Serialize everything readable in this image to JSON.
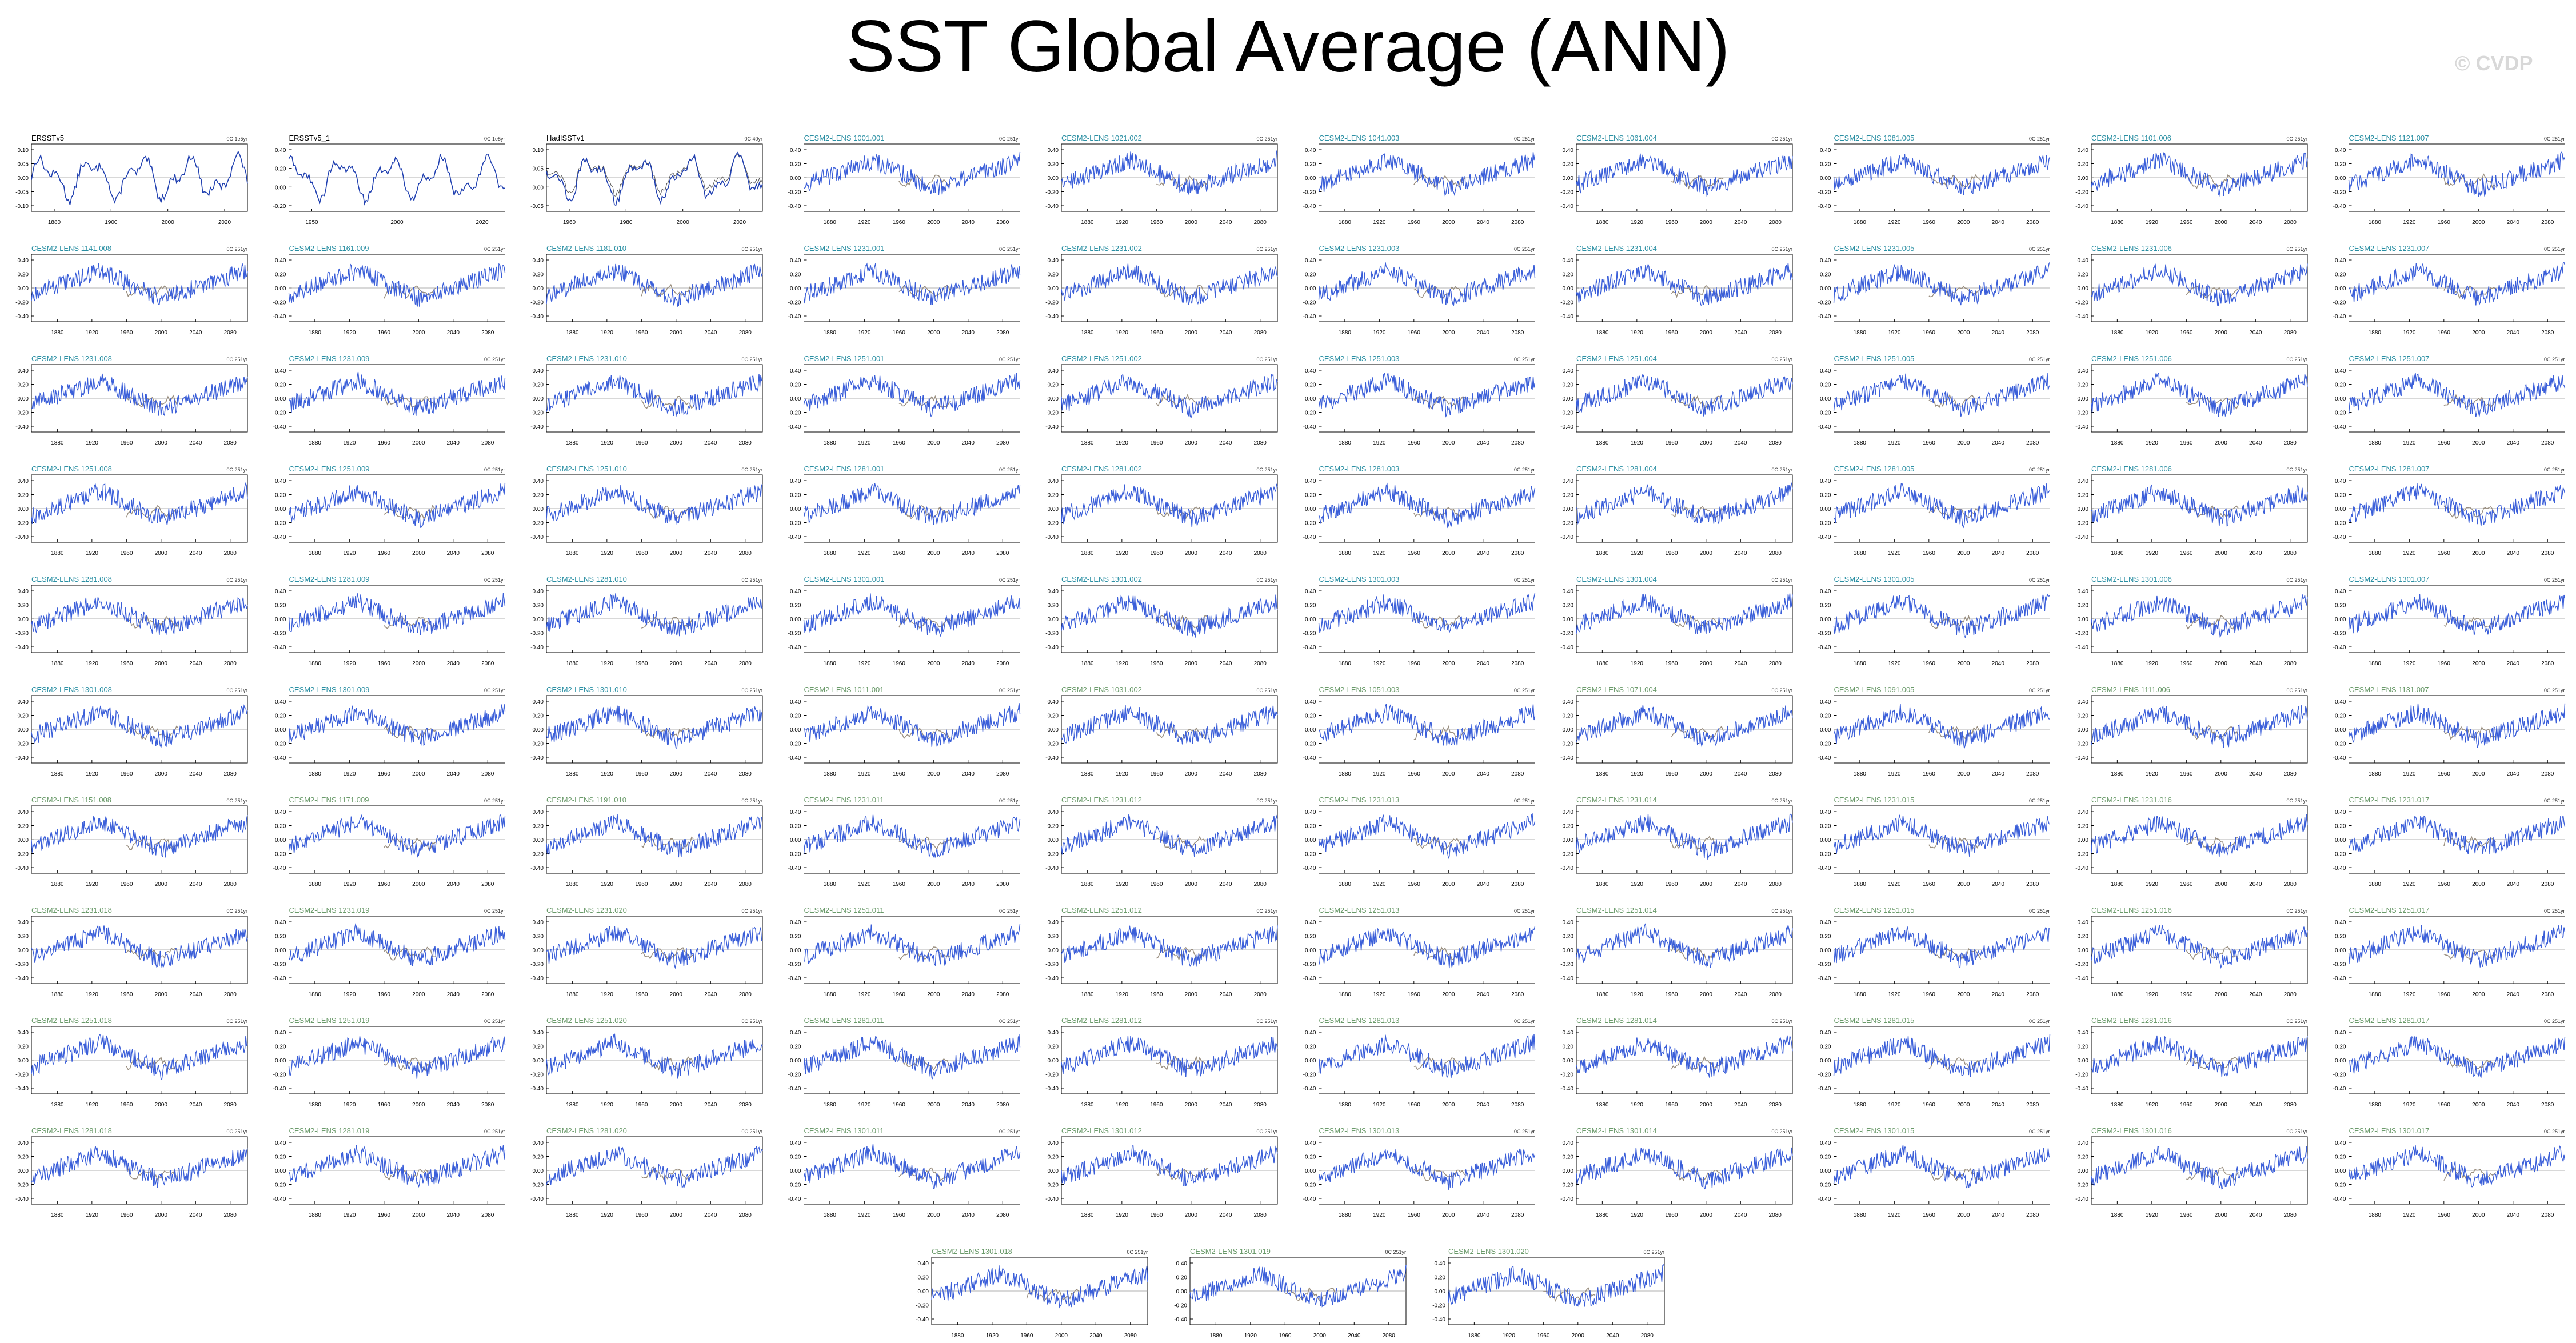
{
  "title": "SST Global Average (ANN)",
  "watermark": "© CVDP",
  "colors": {
    "model_line": "#3b5fd9",
    "obs_line": "#1f3fb0",
    "obs_secondary": "#555555",
    "ensemble_mean": "#9a8f80",
    "zero_line": "#999999",
    "header_model": "#2a8fa3",
    "header_model_b": "#6a9a6a",
    "axis": "#000000"
  },
  "chart_data": {
    "type": "line",
    "panel_layout": {
      "rows": 10,
      "cols": 10,
      "extra_row": 3
    },
    "panels": [
      {
        "name": "ERSSTv5",
        "units": "0C 1e5yr",
        "x_ticks": [
          "1880",
          "1900",
          "2000",
          "2020"
        ],
        "y_ticks": [
          "0.10",
          "0.05",
          "0.00",
          "-0.05",
          "-0.10"
        ],
        "kind": "obs"
      },
      {
        "name": "ERSSTv5_1",
        "units": "0C 1e5yr",
        "x_ticks": [
          "1950",
          "2000",
          "2020"
        ],
        "y_ticks": [
          "0.40",
          "0.20",
          "0.00",
          "-0.20"
        ],
        "kind": "obs"
      },
      {
        "name": "HadISSTv1",
        "units": "0C 40yr",
        "x_ticks": [
          "1960",
          "1980",
          "2000",
          "2020"
        ],
        "y_ticks": [
          "0.10",
          "0.05",
          "0.00",
          "-0.05"
        ],
        "kind": "obs"
      },
      {
        "name": "CESM2-LENS 1001.001",
        "kind": "model"
      },
      {
        "name": "CESM2-LENS 1021.002",
        "kind": "model"
      },
      {
        "name": "CESM2-LENS 1041.003",
        "kind": "model"
      },
      {
        "name": "CESM2-LENS 1061.004",
        "kind": "model"
      },
      {
        "name": "CESM2-LENS 1081.005",
        "kind": "model"
      },
      {
        "name": "CESM2-LENS 1101.006",
        "kind": "model"
      },
      {
        "name": "CESM2-LENS 1121.007",
        "kind": "model"
      },
      {
        "name": "CESM2-LENS 1141.008",
        "kind": "model"
      },
      {
        "name": "CESM2-LENS 1161.009",
        "kind": "model"
      },
      {
        "name": "CESM2-LENS 1181.010",
        "kind": "model"
      },
      {
        "name": "CESM2-LENS 1231.001",
        "kind": "model"
      },
      {
        "name": "CESM2-LENS 1231.002",
        "kind": "model"
      },
      {
        "name": "CESM2-LENS 1231.003",
        "kind": "model"
      },
      {
        "name": "CESM2-LENS 1231.004",
        "kind": "model"
      },
      {
        "name": "CESM2-LENS 1231.005",
        "kind": "model"
      },
      {
        "name": "CESM2-LENS 1231.006",
        "kind": "model"
      },
      {
        "name": "CESM2-LENS 1231.007",
        "kind": "model"
      },
      {
        "name": "CESM2-LENS 1231.008",
        "kind": "model"
      },
      {
        "name": "CESM2-LENS 1231.009",
        "kind": "model"
      },
      {
        "name": "CESM2-LENS 1231.010",
        "kind": "model"
      },
      {
        "name": "CESM2-LENS 1251.001",
        "kind": "model"
      },
      {
        "name": "CESM2-LENS 1251.002",
        "kind": "model"
      },
      {
        "name": "CESM2-LENS 1251.003",
        "kind": "model"
      },
      {
        "name": "CESM2-LENS 1251.004",
        "kind": "model"
      },
      {
        "name": "CESM2-LENS 1251.005",
        "kind": "model"
      },
      {
        "name": "CESM2-LENS 1251.006",
        "kind": "model"
      },
      {
        "name": "CESM2-LENS 1251.007",
        "kind": "model"
      },
      {
        "name": "CESM2-LENS 1251.008",
        "kind": "model"
      },
      {
        "name": "CESM2-LENS 1251.009",
        "kind": "model"
      },
      {
        "name": "CESM2-LENS 1251.010",
        "kind": "model"
      },
      {
        "name": "CESM2-LENS 1281.001",
        "kind": "model"
      },
      {
        "name": "CESM2-LENS 1281.002",
        "kind": "model"
      },
      {
        "name": "CESM2-LENS 1281.003",
        "kind": "model"
      },
      {
        "name": "CESM2-LENS 1281.004",
        "kind": "model"
      },
      {
        "name": "CESM2-LENS 1281.005",
        "kind": "model"
      },
      {
        "name": "CESM2-LENS 1281.006",
        "kind": "model"
      },
      {
        "name": "CESM2-LENS 1281.007",
        "kind": "model"
      },
      {
        "name": "CESM2-LENS 1281.008",
        "kind": "model"
      },
      {
        "name": "CESM2-LENS 1281.009",
        "kind": "model"
      },
      {
        "name": "CESM2-LENS 1281.010",
        "kind": "model"
      },
      {
        "name": "CESM2-LENS 1301.001",
        "kind": "model"
      },
      {
        "name": "CESM2-LENS 1301.002",
        "kind": "model"
      },
      {
        "name": "CESM2-LENS 1301.003",
        "kind": "model"
      },
      {
        "name": "CESM2-LENS 1301.004",
        "kind": "model"
      },
      {
        "name": "CESM2-LENS 1301.005",
        "kind": "model"
      },
      {
        "name": "CESM2-LENS 1301.006",
        "kind": "model"
      },
      {
        "name": "CESM2-LENS 1301.007",
        "kind": "model"
      },
      {
        "name": "CESM2-LENS 1301.008",
        "kind": "model"
      },
      {
        "name": "CESM2-LENS 1301.009",
        "kind": "model"
      },
      {
        "name": "CESM2-LENS 1301.010",
        "kind": "model"
      },
      {
        "name": "CESM2-LENS 1011.001",
        "kind": "model_b"
      },
      {
        "name": "CESM2-LENS 1031.002",
        "kind": "model_b"
      },
      {
        "name": "CESM2-LENS 1051.003",
        "kind": "model_b"
      },
      {
        "name": "CESM2-LENS 1071.004",
        "kind": "model_b"
      },
      {
        "name": "CESM2-LENS 1091.005",
        "kind": "model_b"
      },
      {
        "name": "CESM2-LENS 1111.006",
        "kind": "model_b"
      },
      {
        "name": "CESM2-LENS 1131.007",
        "kind": "model_b"
      },
      {
        "name": "CESM2-LENS 1151.008",
        "kind": "model_b"
      },
      {
        "name": "CESM2-LENS 1171.009",
        "kind": "model_b"
      },
      {
        "name": "CESM2-LENS 1191.010",
        "kind": "model_b"
      },
      {
        "name": "CESM2-LENS 1231.011",
        "kind": "model_b"
      },
      {
        "name": "CESM2-LENS 1231.012",
        "kind": "model_b"
      },
      {
        "name": "CESM2-LENS 1231.013",
        "kind": "model_b"
      },
      {
        "name": "CESM2-LENS 1231.014",
        "kind": "model_b"
      },
      {
        "name": "CESM2-LENS 1231.015",
        "kind": "model_b"
      },
      {
        "name": "CESM2-LENS 1231.016",
        "kind": "model_b"
      },
      {
        "name": "CESM2-LENS 1231.017",
        "kind": "model_b"
      },
      {
        "name": "CESM2-LENS 1231.018",
        "kind": "model_b"
      },
      {
        "name": "CESM2-LENS 1231.019",
        "kind": "model_b"
      },
      {
        "name": "CESM2-LENS 1231.020",
        "kind": "model_b"
      },
      {
        "name": "CESM2-LENS 1251.011",
        "kind": "model_b"
      },
      {
        "name": "CESM2-LENS 1251.012",
        "kind": "model_b"
      },
      {
        "name": "CESM2-LENS 1251.013",
        "kind": "model_b"
      },
      {
        "name": "CESM2-LENS 1251.014",
        "kind": "model_b"
      },
      {
        "name": "CESM2-LENS 1251.015",
        "kind": "model_b"
      },
      {
        "name": "CESM2-LENS 1251.016",
        "kind": "model_b"
      },
      {
        "name": "CESM2-LENS 1251.017",
        "kind": "model_b"
      },
      {
        "name": "CESM2-LENS 1251.018",
        "kind": "model_b"
      },
      {
        "name": "CESM2-LENS 1251.019",
        "kind": "model_b"
      },
      {
        "name": "CESM2-LENS 1251.020",
        "kind": "model_b"
      },
      {
        "name": "CESM2-LENS 1281.011",
        "kind": "model_b"
      },
      {
        "name": "CESM2-LENS 1281.012",
        "kind": "model_b"
      },
      {
        "name": "CESM2-LENS 1281.013",
        "kind": "model_b"
      },
      {
        "name": "CESM2-LENS 1281.014",
        "kind": "model_b"
      },
      {
        "name": "CESM2-LENS 1281.015",
        "kind": "model_b"
      },
      {
        "name": "CESM2-LENS 1281.016",
        "kind": "model_b"
      },
      {
        "name": "CESM2-LENS 1281.017",
        "kind": "model_b"
      },
      {
        "name": "CESM2-LENS 1281.018",
        "kind": "model_b"
      },
      {
        "name": "CESM2-LENS 1281.019",
        "kind": "model_b"
      },
      {
        "name": "CESM2-LENS 1281.020",
        "kind": "model_b"
      },
      {
        "name": "CESM2-LENS 1301.011",
        "kind": "model_b"
      },
      {
        "name": "CESM2-LENS 1301.012",
        "kind": "model_b"
      },
      {
        "name": "CESM2-LENS 1301.013",
        "kind": "model_b"
      },
      {
        "name": "CESM2-LENS 1301.014",
        "kind": "model_b"
      },
      {
        "name": "CESM2-LENS 1301.015",
        "kind": "model_b"
      },
      {
        "name": "CESM2-LENS 1301.016",
        "kind": "model_b"
      },
      {
        "name": "CESM2-LENS 1301.017",
        "kind": "model_b"
      },
      {
        "name": "CESM2-LENS 1301.018",
        "kind": "model_b"
      },
      {
        "name": "CESM2-LENS 1301.019",
        "kind": "model_b"
      },
      {
        "name": "CESM2-LENS 1301.020",
        "kind": "model_b"
      }
    ],
    "model_units": "0C 251yr",
    "model_x_ticks": [
      "1880",
      "1920",
      "1960",
      "2000",
      "2040",
      "2080"
    ],
    "model_x_range": [
      1850,
      2100
    ],
    "model_y_ticks": [
      "0.40",
      "0.20",
      "0.00",
      "-0.20",
      "-0.40"
    ],
    "model_y_range": [
      -0.45,
      0.45
    ],
    "series_shape": {
      "early_mean": -0.1,
      "peak_year": 1930,
      "peak_value": 0.25,
      "trough_year": 2000,
      "trough_value": -0.15,
      "end_value": 0.25
    }
  }
}
